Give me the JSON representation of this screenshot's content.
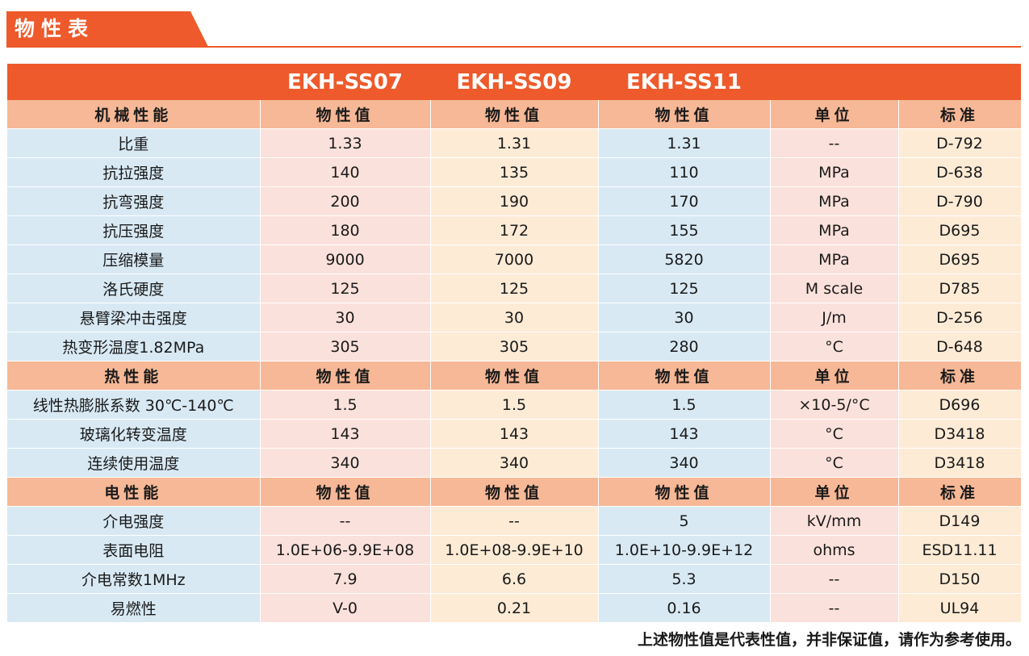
{
  "title": "物性表",
  "models": [
    "EKH-SS07",
    "EKH-SS09",
    "EKH-SS11"
  ],
  "sections": [
    {
      "header": [
        "机械性能",
        "物性值",
        "物性值",
        "物性值",
        "单位",
        "标准"
      ],
      "rows": [
        [
          "比重",
          "1.33",
          "1.31",
          "1.31",
          "--",
          "D-792"
        ],
        [
          "抗拉强度",
          "140",
          "135",
          "110",
          "MPa",
          "D-638"
        ],
        [
          "抗弯强度",
          "200",
          "190",
          "170",
          "MPa",
          "D-790"
        ],
        [
          "抗压强度",
          "180",
          "172",
          "155",
          "MPa",
          "D695"
        ],
        [
          "压缩模量",
          "9000",
          "7000",
          "5820",
          "MPa",
          "D695"
        ],
        [
          "洛氏硬度",
          "125",
          "125",
          "125",
          "M scale",
          "D785"
        ],
        [
          "悬臂梁冲击强度",
          "30",
          "30",
          "30",
          "J/m",
          "D-256"
        ],
        [
          "热变形温度1.82MPa",
          "305",
          "305",
          "280",
          "°C",
          "D-648"
        ]
      ]
    },
    {
      "header": [
        "热性能",
        "物性值",
        "物性值",
        "物性值",
        "单位",
        "标准"
      ],
      "rows": [
        [
          "线性热膨胀系数 30℃-140℃",
          "1.5",
          "1.5",
          "1.5",
          "×10-5/°C",
          "D696"
        ],
        [
          "玻璃化转变温度",
          "143",
          "143",
          "143",
          "°C",
          "D3418"
        ],
        [
          "连续使用温度",
          "340",
          "340",
          "340",
          "°C",
          "D3418"
        ]
      ]
    },
    {
      "header": [
        "电性能",
        "物性值",
        "物性值",
        "物性值",
        "单位",
        "标准"
      ],
      "rows": [
        [
          "介电强度",
          "--",
          "--",
          "5",
          "kV/mm",
          "D149"
        ],
        [
          "表面电阻",
          "1.0E+06-9.9E+08",
          "1.0E+08-9.9E+10",
          "1.0E+10-9.9E+12",
          "ohms",
          "ESD11.11"
        ],
        [
          "介电常数1MHz",
          "7.9",
          "6.6",
          "5.3",
          "--",
          "D150"
        ],
        [
          "易燃性",
          "V-0",
          "0.21",
          "0.16",
          "--",
          "UL94"
        ]
      ]
    }
  ],
  "footnote": "上述物性值是代表性值，并非保证值，请作为参考使用。",
  "colors": {
    "accent": "#ee5a2b",
    "section_header": "#f6b896",
    "cell_blue": "#d8e9f4",
    "cell_pink": "#fbe1db",
    "cell_peach": "#fdebd6"
  }
}
